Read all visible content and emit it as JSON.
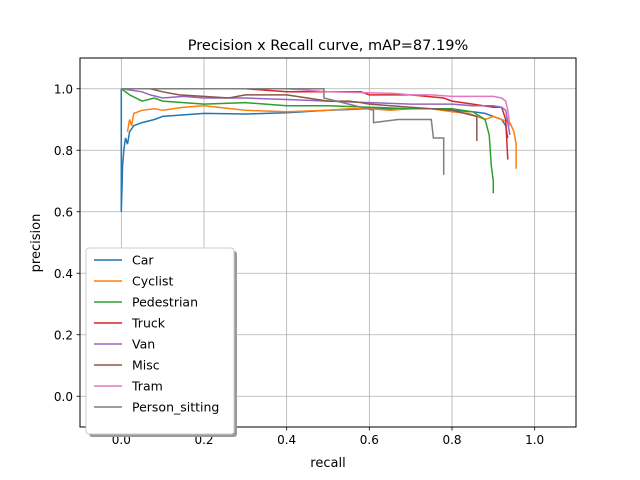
{
  "chart_data": {
    "type": "line",
    "title": "Precision x Recall curve, mAP=87.19%",
    "xlabel": "recall",
    "ylabel": "precision",
    "xlim": [
      -0.1,
      1.1
    ],
    "ylim": [
      -0.1,
      1.1
    ],
    "grid": true,
    "legend_position": "lower-left",
    "xticks": [
      0.0,
      0.2,
      0.4,
      0.6,
      0.8,
      1.0
    ],
    "yticks": [
      0.0,
      0.2,
      0.4,
      0.6,
      0.8,
      1.0
    ],
    "xtick_labels": [
      "0.0",
      "0.2",
      "0.4",
      "0.6",
      "0.8",
      "1.0"
    ],
    "ytick_labels": [
      "0.0",
      "0.2",
      "0.4",
      "0.6",
      "0.8",
      "1.0"
    ],
    "series": [
      {
        "name": "Car",
        "color": "#1f77b4",
        "x": [
          0.0,
          0.0,
          0.003,
          0.006,
          0.01,
          0.015,
          0.02,
          0.03,
          0.05,
          0.08,
          0.1,
          0.15,
          0.2,
          0.3,
          0.4,
          0.5,
          0.6,
          0.65,
          0.7,
          0.75,
          0.8,
          0.85,
          0.88,
          0.9,
          0.92,
          0.93,
          0.935
        ],
        "y": [
          1.0,
          0.6,
          0.75,
          0.8,
          0.84,
          0.82,
          0.86,
          0.88,
          0.89,
          0.9,
          0.91,
          0.915,
          0.92,
          0.918,
          0.922,
          0.93,
          0.935,
          0.935,
          0.935,
          0.935,
          0.93,
          0.925,
          0.92,
          0.91,
          0.9,
          0.88,
          0.84
        ]
      },
      {
        "name": "Cyclist",
        "color": "#ff7f0e",
        "x": [
          0.015,
          0.02,
          0.025,
          0.03,
          0.05,
          0.08,
          0.1,
          0.15,
          0.2,
          0.3,
          0.4,
          0.5,
          0.55,
          0.6,
          0.65,
          0.7,
          0.75,
          0.8,
          0.84,
          0.88,
          0.9,
          0.92,
          0.94,
          0.95,
          0.955,
          0.955
        ],
        "y": [
          0.86,
          0.9,
          0.88,
          0.92,
          0.93,
          0.935,
          0.93,
          0.94,
          0.945,
          0.93,
          0.925,
          0.93,
          0.935,
          0.935,
          0.93,
          0.935,
          0.935,
          0.925,
          0.92,
          0.9,
          0.91,
          0.9,
          0.89,
          0.86,
          0.82,
          0.74
        ]
      },
      {
        "name": "Pedestrian",
        "color": "#2ca02c",
        "x": [
          0.0,
          0.02,
          0.05,
          0.08,
          0.1,
          0.15,
          0.2,
          0.3,
          0.4,
          0.5,
          0.6,
          0.7,
          0.8,
          0.85,
          0.88,
          0.89,
          0.895,
          0.9,
          0.9
        ],
        "y": [
          1.0,
          0.98,
          0.96,
          0.97,
          0.96,
          0.955,
          0.95,
          0.955,
          0.945,
          0.945,
          0.94,
          0.935,
          0.935,
          0.925,
          0.9,
          0.85,
          0.75,
          0.7,
          0.66
        ]
      },
      {
        "name": "Truck",
        "color": "#d62728",
        "x": [
          0.0,
          0.15,
          0.3,
          0.4,
          0.5,
          0.58,
          0.6,
          0.7,
          0.78,
          0.8,
          0.85,
          0.9,
          0.92,
          0.93,
          0.935
        ],
        "y": [
          1.0,
          1.0,
          1.0,
          0.99,
          0.99,
          0.99,
          0.98,
          0.98,
          0.97,
          0.96,
          0.95,
          0.94,
          0.94,
          0.9,
          0.77
        ]
      },
      {
        "name": "Van",
        "color": "#9467bd",
        "x": [
          0.0,
          0.05,
          0.07,
          0.1,
          0.15,
          0.2,
          0.3,
          0.4,
          0.5,
          0.6,
          0.7,
          0.8,
          0.85,
          0.9,
          0.92,
          0.93,
          0.94
        ],
        "y": [
          1.0,
          0.99,
          0.98,
          0.97,
          0.975,
          0.97,
          0.97,
          0.965,
          0.96,
          0.955,
          0.95,
          0.95,
          0.945,
          0.945,
          0.94,
          0.93,
          0.85
        ]
      },
      {
        "name": "Misc",
        "color": "#8c564b",
        "x": [
          0.0,
          0.07,
          0.1,
          0.14,
          0.2,
          0.26,
          0.3,
          0.4,
          0.5,
          0.55,
          0.58,
          0.6,
          0.7,
          0.8,
          0.83,
          0.86,
          0.86
        ],
        "y": [
          1.0,
          1.0,
          0.99,
          0.98,
          0.975,
          0.97,
          0.98,
          0.98,
          0.96,
          0.96,
          0.955,
          0.95,
          0.94,
          0.93,
          0.92,
          0.91,
          0.83
        ]
      },
      {
        "name": "Tram",
        "color": "#e377c2",
        "x": [
          0.0,
          0.4,
          0.5,
          0.66,
          0.7,
          0.75,
          0.8,
          0.85,
          0.9,
          0.92,
          0.93,
          0.935,
          0.94
        ],
        "y": [
          1.0,
          1.0,
          0.99,
          0.985,
          0.98,
          0.98,
          0.975,
          0.975,
          0.975,
          0.97,
          0.96,
          0.93,
          0.88
        ]
      },
      {
        "name": "Person_sitting",
        "color": "#7f7f7f",
        "x": [
          0.0,
          0.49,
          0.49,
          0.55,
          0.61,
          0.61,
          0.67,
          0.72,
          0.75,
          0.755,
          0.77,
          0.775,
          0.78,
          0.78
        ],
        "y": [
          1.0,
          1.0,
          0.97,
          0.95,
          0.93,
          0.89,
          0.9,
          0.9,
          0.9,
          0.84,
          0.84,
          0.84,
          0.84,
          0.72
        ]
      }
    ]
  }
}
